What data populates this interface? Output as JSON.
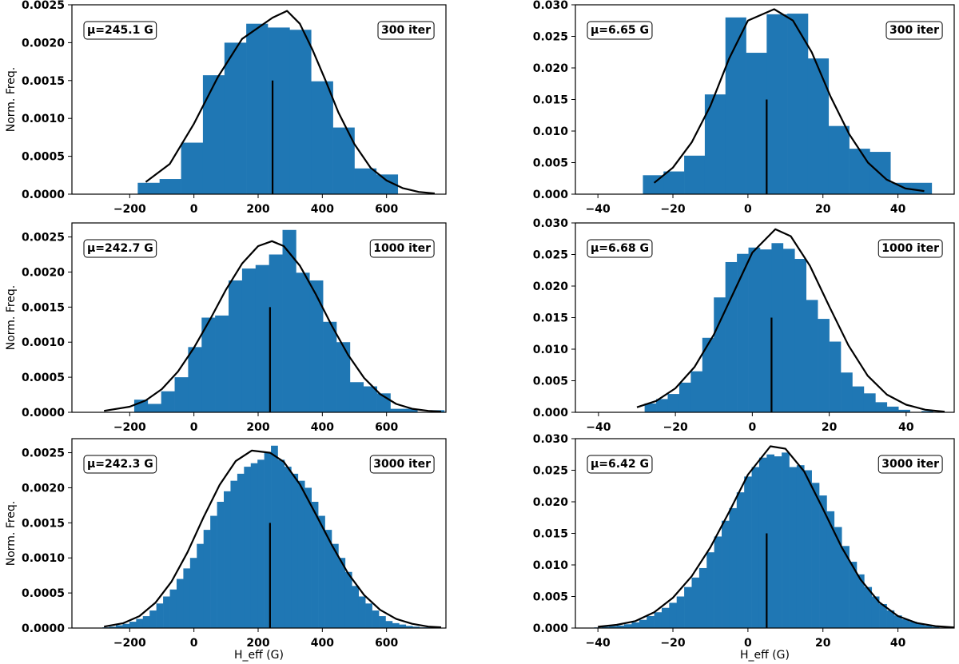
{
  "figure": {
    "xlabel": "H_eff (G)",
    "ylabel": "Norm. Freq."
  },
  "chart_data": [
    {
      "type": "bar",
      "id": "p00",
      "title": "",
      "xlabel": "",
      "ylabel": "Norm. Freq.",
      "xlim": [
        -380,
        785
      ],
      "ylim": [
        0,
        0.0025
      ],
      "xticks": [
        -200,
        0,
        200,
        400,
        600
      ],
      "xtick_labels": [
        "−200",
        "0",
        "200",
        "400",
        "600"
      ],
      "yticks": [
        0,
        0.0005,
        0.001,
        0.0015,
        0.002,
        0.0025
      ],
      "ytick_labels": [
        "0.0000",
        "0.0005",
        "0.0010",
        "0.0015",
        "0.0020",
        "0.0025"
      ],
      "bin_edges": [
        -175,
        -107,
        -40,
        28,
        95,
        163,
        230,
        298,
        365,
        433,
        500,
        568,
        635
      ],
      "values": [
        0.00015,
        0.0002,
        0.00068,
        0.00157,
        0.002,
        0.00225,
        0.0022,
        0.00217,
        0.00149,
        0.00088,
        0.00034,
        0.00026
      ],
      "fit_x": [
        -150,
        -75,
        0,
        75,
        150,
        245,
        290,
        330,
        370,
        410,
        450,
        500,
        550,
        600,
        650,
        700,
        750
      ],
      "fit_y": [
        0.00016,
        0.0004,
        0.00093,
        0.00155,
        0.00205,
        0.00233,
        0.00242,
        0.00225,
        0.0019,
        0.0015,
        0.00108,
        0.00066,
        0.00035,
        0.00018,
        8e-05,
        3e-05,
        1e-05
      ],
      "mean_line_x": 245,
      "mean_line_height": 0.0015,
      "mu_label": "μ=245.1 G",
      "iter_label": "300 iter"
    },
    {
      "type": "bar",
      "id": "p01",
      "title": "",
      "xlabel": "",
      "ylabel": "",
      "xlim": [
        -46,
        55
      ],
      "ylim": [
        0,
        0.03
      ],
      "xticks": [
        -40,
        -20,
        0,
        20,
        40
      ],
      "xtick_labels": [
        "−40",
        "−20",
        "0",
        "20",
        "40"
      ],
      "yticks": [
        0,
        0.005,
        0.01,
        0.015,
        0.02,
        0.025,
        0.03
      ],
      "ytick_labels": [
        "0.000",
        "0.005",
        "0.010",
        "0.015",
        "0.020",
        "0.025",
        "0.030"
      ],
      "bin_edges": [
        -28,
        -22.5,
        -17,
        -11.5,
        -6,
        -0.5,
        5,
        10.5,
        16,
        21.5,
        27,
        32.5,
        38,
        43.5,
        49
      ],
      "values": [
        0.003,
        0.0036,
        0.0061,
        0.0158,
        0.028,
        0.0224,
        0.0285,
        0.0286,
        0.0215,
        0.0108,
        0.0072,
        0.0067,
        0.0018,
        0.0018
      ],
      "fit_x": [
        -25,
        -20,
        -15,
        -10,
        -5,
        0,
        7,
        12,
        17,
        22,
        27,
        32,
        37,
        42,
        47
      ],
      "fit_y": [
        0.0018,
        0.0042,
        0.0082,
        0.014,
        0.0215,
        0.0275,
        0.0293,
        0.0275,
        0.0225,
        0.0155,
        0.0095,
        0.005,
        0.0023,
        0.0009,
        0.0005
      ],
      "mean_line_x": 5,
      "mean_line_height": 0.015,
      "mu_label": "μ=6.65 G",
      "iter_label": "300 iter"
    },
    {
      "type": "bar",
      "id": "p10",
      "title": "",
      "xlabel": "",
      "ylabel": "Norm. Freq.",
      "xlim": [
        -380,
        785
      ],
      "ylim": [
        0,
        0.0027
      ],
      "xticks": [
        -200,
        0,
        200,
        400,
        600
      ],
      "xtick_labels": [
        "−200",
        "0",
        "200",
        "400",
        "600"
      ],
      "yticks": [
        0,
        0.0005,
        0.001,
        0.0015,
        0.002,
        0.0025
      ],
      "ytick_labels": [
        "0.0000",
        "0.0005",
        "0.0010",
        "0.0015",
        "0.0020",
        "0.0025"
      ],
      "bin_edges": [
        -270,
        -228,
        -186,
        -144,
        -102,
        -60,
        -18,
        24,
        66,
        108,
        150,
        192,
        234,
        276,
        318,
        360,
        402,
        444,
        486,
        528,
        570,
        612,
        654,
        696,
        738,
        780
      ],
      "values": [
        0.0,
        0.0,
        0.00018,
        0.00012,
        0.0003,
        0.0005,
        0.00093,
        0.00135,
        0.00138,
        0.00188,
        0.00205,
        0.0021,
        0.00225,
        0.0026,
        0.00199,
        0.00188,
        0.00129,
        0.001,
        0.00043,
        0.00037,
        0.00027,
        5e-05,
        5e-05,
        0.0,
        3e-05
      ],
      "fit_x": [
        -280,
        -200,
        -150,
        -100,
        -50,
        0,
        50,
        100,
        150,
        200,
        243,
        280,
        330,
        380,
        430,
        480,
        530,
        580,
        630,
        680,
        730,
        770
      ],
      "fit_y": [
        2e-05,
        8e-05,
        0.00017,
        0.00033,
        0.00058,
        0.00092,
        0.00132,
        0.00175,
        0.00212,
        0.00237,
        0.00244,
        0.00237,
        0.00209,
        0.00168,
        0.00123,
        0.00082,
        0.00049,
        0.00026,
        0.00012,
        5e-05,
        2e-05,
        1e-05
      ],
      "mean_line_x": 237,
      "mean_line_height": 0.0015,
      "mu_label": "μ=242.7 G",
      "iter_label": "1000 iter"
    },
    {
      "type": "bar",
      "id": "p11",
      "title": "",
      "xlabel": "",
      "ylabel": "",
      "xlim": [
        -46,
        52.5
      ],
      "ylim": [
        0,
        0.03
      ],
      "xticks": [
        -40,
        -20,
        0,
        20,
        40
      ],
      "xtick_labels": [
        "−40",
        "−20",
        "0",
        "20",
        "40"
      ],
      "yticks": [
        0,
        0.005,
        0.01,
        0.015,
        0.02,
        0.025,
        0.03
      ],
      "ytick_labels": [
        "0.000",
        "0.005",
        "0.010",
        "0.015",
        "0.020",
        "0.025",
        "0.030"
      ],
      "bin_edges": [
        -28,
        -25,
        -22,
        -19,
        -16,
        -13,
        -10,
        -7,
        -4,
        -1,
        2,
        5,
        8,
        11,
        14,
        17,
        20,
        23,
        26,
        29,
        32,
        35,
        38,
        41,
        44,
        47
      ],
      "values": [
        0.0014,
        0.0021,
        0.0029,
        0.0047,
        0.0065,
        0.0118,
        0.0182,
        0.0238,
        0.0251,
        0.0261,
        0.0258,
        0.0268,
        0.0259,
        0.0243,
        0.0178,
        0.0148,
        0.0112,
        0.0063,
        0.0041,
        0.003,
        0.0016,
        0.0009,
        0.0004,
        0.0,
        0.0002
      ],
      "fit_x": [
        -30,
        -25,
        -20,
        -15,
        -10,
        -5,
        0,
        6,
        10,
        15,
        20,
        25,
        30,
        35,
        40,
        45,
        50
      ],
      "fit_y": [
        0.0008,
        0.0018,
        0.0038,
        0.0072,
        0.0123,
        0.0188,
        0.0253,
        0.029,
        0.0279,
        0.0232,
        0.0168,
        0.0106,
        0.0058,
        0.0028,
        0.0012,
        0.0004,
        0.0001
      ],
      "mean_line_x": 5,
      "mean_line_height": 0.015,
      "mu_label": "μ=6.68 G",
      "iter_label": "1000 iter"
    },
    {
      "type": "bar",
      "id": "p20",
      "title": "",
      "xlabel": "H_eff (G)",
      "ylabel": "Norm. Freq.",
      "xlim": [
        -380,
        785
      ],
      "ylim": [
        0,
        0.0027
      ],
      "xticks": [
        -200,
        0,
        200,
        400,
        600
      ],
      "xtick_labels": [
        "−200",
        "0",
        "200",
        "400",
        "600"
      ],
      "yticks": [
        0,
        0.0005,
        0.001,
        0.0015,
        0.002,
        0.0025
      ],
      "ytick_labels": [
        "0.0000",
        "0.0005",
        "0.0010",
        "0.0015",
        "0.0020",
        "0.0025"
      ],
      "bin_edges": [
        -285,
        -264,
        -243,
        -222,
        -201,
        -180,
        -159,
        -138,
        -117,
        -96,
        -75,
        -54,
        -33,
        -12,
        9,
        30,
        51,
        72,
        93,
        114,
        135,
        156,
        177,
        198,
        219,
        240,
        261,
        282,
        303,
        324,
        345,
        366,
        387,
        408,
        429,
        450,
        471,
        492,
        513,
        534,
        555,
        576,
        597,
        618,
        639,
        660,
        681,
        702,
        723,
        744,
        765
      ],
      "values": [
        1e-05,
        2e-05,
        4e-05,
        6e-05,
        9e-05,
        0.00013,
        0.00017,
        0.00025,
        0.00035,
        0.00045,
        0.00055,
        0.0007,
        0.00085,
        0.001,
        0.0012,
        0.0014,
        0.0016,
        0.0018,
        0.00195,
        0.0021,
        0.0022,
        0.0023,
        0.00235,
        0.0024,
        0.0025,
        0.0026,
        0.0024,
        0.0023,
        0.0022,
        0.0021,
        0.002,
        0.0018,
        0.0016,
        0.0014,
        0.0012,
        0.001,
        0.0008,
        0.0006,
        0.00045,
        0.00035,
        0.00025,
        0.00017,
        0.0001,
        7e-05,
        5e-05,
        3e-05,
        2e-05,
        1e-05,
        1e-05,
        1e-05
      ],
      "fit_x": [
        -280,
        -220,
        -170,
        -120,
        -70,
        -20,
        30,
        80,
        130,
        180,
        237,
        280,
        330,
        380,
        430,
        480,
        530,
        580,
        630,
        680,
        730,
        770
      ],
      "fit_y": [
        2e-05,
        7e-05,
        0.00017,
        0.00036,
        0.00066,
        0.00108,
        0.00158,
        0.00204,
        0.00238,
        0.00253,
        0.0025,
        0.00237,
        0.00205,
        0.00162,
        0.00118,
        0.00078,
        0.00047,
        0.00026,
        0.00013,
        6e-05,
        2e-05,
        1e-05
      ],
      "mean_line_x": 237,
      "mean_line_height": 0.0015,
      "mu_label": "μ=242.3 G",
      "iter_label": "3000 iter"
    },
    {
      "type": "bar",
      "id": "p21",
      "title": "",
      "xlabel": "H_eff (G)",
      "ylabel": "",
      "xlim": [
        -46,
        55
      ],
      "ylim": [
        0,
        0.03
      ],
      "xticks": [
        -40,
        -20,
        0,
        20,
        40
      ],
      "xtick_labels": [
        "−40",
        "−20",
        "0",
        "20",
        "40"
      ],
      "yticks": [
        0,
        0.005,
        0.01,
        0.015,
        0.02,
        0.025,
        0.03
      ],
      "ytick_labels": [
        "0.000",
        "0.005",
        "0.010",
        "0.015",
        "0.020",
        "0.025",
        "0.030"
      ],
      "bin_edges": [
        -41,
        -39,
        -37,
        -35,
        -33,
        -31,
        -29,
        -27,
        -25,
        -23,
        -21,
        -19,
        -17,
        -15,
        -13,
        -11,
        -9,
        -7,
        -5,
        -3,
        -1,
        1,
        3,
        5,
        7,
        9,
        11,
        13,
        15,
        17,
        19,
        21,
        23,
        25,
        27,
        29,
        31,
        33,
        35,
        37,
        39,
        41,
        43,
        45,
        47,
        49,
        51
      ],
      "values": [
        0.0001,
        0.0002,
        0.0003,
        0.0004,
        0.0006,
        0.0009,
        0.0013,
        0.0019,
        0.0025,
        0.0032,
        0.004,
        0.005,
        0.0065,
        0.008,
        0.0095,
        0.012,
        0.0145,
        0.017,
        0.019,
        0.0215,
        0.024,
        0.0255,
        0.027,
        0.0275,
        0.0272,
        0.0278,
        0.0255,
        0.0258,
        0.025,
        0.023,
        0.021,
        0.0185,
        0.016,
        0.013,
        0.0105,
        0.0085,
        0.0065,
        0.005,
        0.0038,
        0.0028,
        0.002,
        0.0014,
        0.001,
        0.0007,
        0.0004,
        0.0002
      ],
      "fit_x": [
        -40,
        -35,
        -30,
        -25,
        -20,
        -15,
        -10,
        -5,
        0,
        6,
        10,
        15,
        20,
        25,
        30,
        35,
        40,
        45,
        50,
        55
      ],
      "fit_y": [
        0.0002,
        0.0005,
        0.0011,
        0.0025,
        0.0048,
        0.0082,
        0.0128,
        0.0184,
        0.0243,
        0.0288,
        0.0284,
        0.0248,
        0.0189,
        0.0128,
        0.0077,
        0.0041,
        0.0019,
        0.0008,
        0.0003,
        0.0001
      ],
      "mean_line_x": 5,
      "mean_line_height": 0.015,
      "mu_label": "μ=6.42 G",
      "iter_label": "3000 iter"
    }
  ],
  "colors": {
    "bar": "#1f77b4",
    "fit": "#000000",
    "axis": "#000000",
    "background": "#ffffff"
  }
}
